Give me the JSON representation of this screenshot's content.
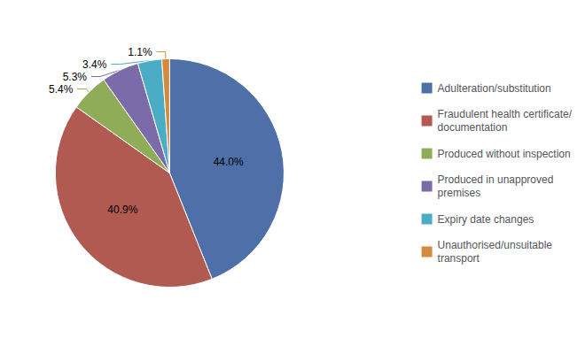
{
  "chart_data": {
    "type": "pie",
    "categories": [
      "Adulteration/substitution",
      "Fraudulent health certificate/\ndocumentation",
      "Produced without inspection",
      "Produced in unapproved\npremises",
      "Expiry date changes",
      "Unauthorised/unsuitable\ntransport"
    ],
    "values": [
      44.0,
      40.9,
      5.4,
      5.3,
      3.4,
      1.1
    ],
    "value_labels": [
      "44.0%",
      "40.9%",
      "5.4%",
      "5.3%",
      "3.4%",
      "1.1%"
    ],
    "colors": [
      "#4e6fa8",
      "#b05a52",
      "#8fad58",
      "#7b6ba8",
      "#4bacc6",
      "#d48b3e"
    ],
    "data_labels": true,
    "legend": "right"
  }
}
